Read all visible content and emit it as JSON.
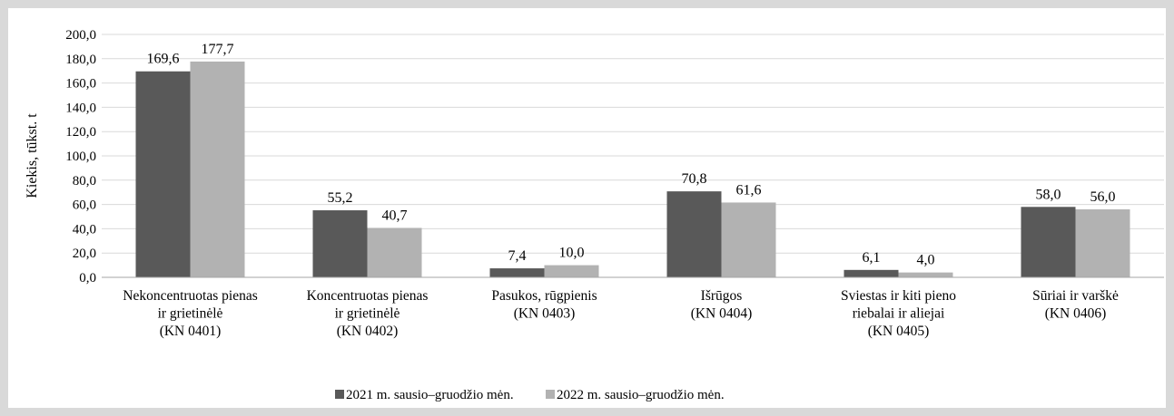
{
  "chart_data": {
    "type": "bar",
    "title": "",
    "xlabel": "",
    "ylabel": "Kiekis, tūkst. t",
    "ylim": [
      0,
      200
    ],
    "ytick_step": 20,
    "ytick_labels": [
      "0,0",
      "20,0",
      "40,0",
      "60,0",
      "80,0",
      "100,0",
      "120,0",
      "140,0",
      "160,0",
      "180,0",
      "200,0"
    ],
    "grid": true,
    "legend_position": "bottom",
    "categories": [
      [
        "Nekoncentruotas pienas",
        "ir grietinėlė",
        "(KN 0401)"
      ],
      [
        "Koncentruotas pienas",
        "ir grietinėlė",
        "(KN 0402)"
      ],
      [
        "Pasukos, rūgpienis",
        "(KN 0403)"
      ],
      [
        "Išrūgos",
        "(KN 0404)"
      ],
      [
        "Sviestas ir kiti pieno",
        "riebalai ir aliejai",
        "(KN 0405)"
      ],
      [
        "Sūriai ir varškė",
        "(KN 0406)"
      ]
    ],
    "series": [
      {
        "name": "2021 m. sausio–gruodžio mėn.",
        "color": "#595959",
        "values": [
          169.6,
          55.2,
          7.4,
          70.8,
          6.1,
          58.0
        ],
        "labels": [
          "169,6",
          "55,2",
          "7,4",
          "70,8",
          "6,1",
          "58,0"
        ]
      },
      {
        "name": "2022 m. sausio–gruodžio mėn.",
        "color": "#b2b2b2",
        "values": [
          177.7,
          40.7,
          10.0,
          61.6,
          4.0,
          56.0
        ],
        "labels": [
          "177,7",
          "40,7",
          "10,0",
          "61,6",
          "4,0",
          "56,0"
        ]
      }
    ]
  }
}
